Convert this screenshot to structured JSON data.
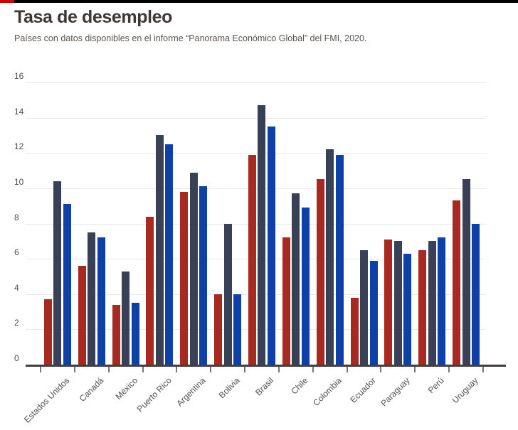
{
  "page": {
    "title": "Tasa de desempleo",
    "subtitle": "Países con datos disponibles en el informe “Panorama Económico Global” del FMI, 2020.",
    "accent_colors": {
      "red": "#cc0000",
      "black": "#000000"
    }
  },
  "chart_data": {
    "type": "bar",
    "title": "Tasa de desempleo",
    "subtitle": "Países con datos disponibles en el informe “Panorama Económico Global” del FMI, 2020.",
    "categories": [
      "Estados Unidos",
      "Canadá",
      "México",
      "Puerto Rico",
      "Argentina",
      "Bolivia",
      "Brasil",
      "Chile",
      "Colombia",
      "Ecuador",
      "Paraguay",
      "Perú",
      "Uruguay"
    ],
    "series": [
      {
        "name": "serie-roja",
        "color": "#a8291f",
        "values": [
          3.7,
          5.6,
          3.4,
          8.4,
          9.8,
          4.0,
          11.9,
          7.2,
          10.5,
          3.8,
          7.1,
          6.5,
          9.3
        ]
      },
      {
        "name": "serie-azul-oscuro",
        "color": "#394157",
        "values": [
          10.4,
          7.5,
          5.3,
          13.0,
          10.9,
          8.0,
          14.7,
          9.7,
          12.2,
          6.5,
          7.0,
          7.0,
          10.5
        ]
      },
      {
        "name": "serie-azul",
        "color": "#0e41a8",
        "values": [
          9.1,
          7.2,
          3.5,
          12.5,
          10.1,
          4.0,
          13.5,
          8.9,
          11.9,
          5.9,
          6.3,
          7.2,
          8.0
        ]
      }
    ],
    "ylim": [
      0,
      16
    ],
    "yticks": [
      0,
      2,
      4,
      6,
      8,
      10,
      12,
      14,
      16
    ],
    "grid": true,
    "legend": "none",
    "xlabel": "",
    "ylabel": ""
  }
}
